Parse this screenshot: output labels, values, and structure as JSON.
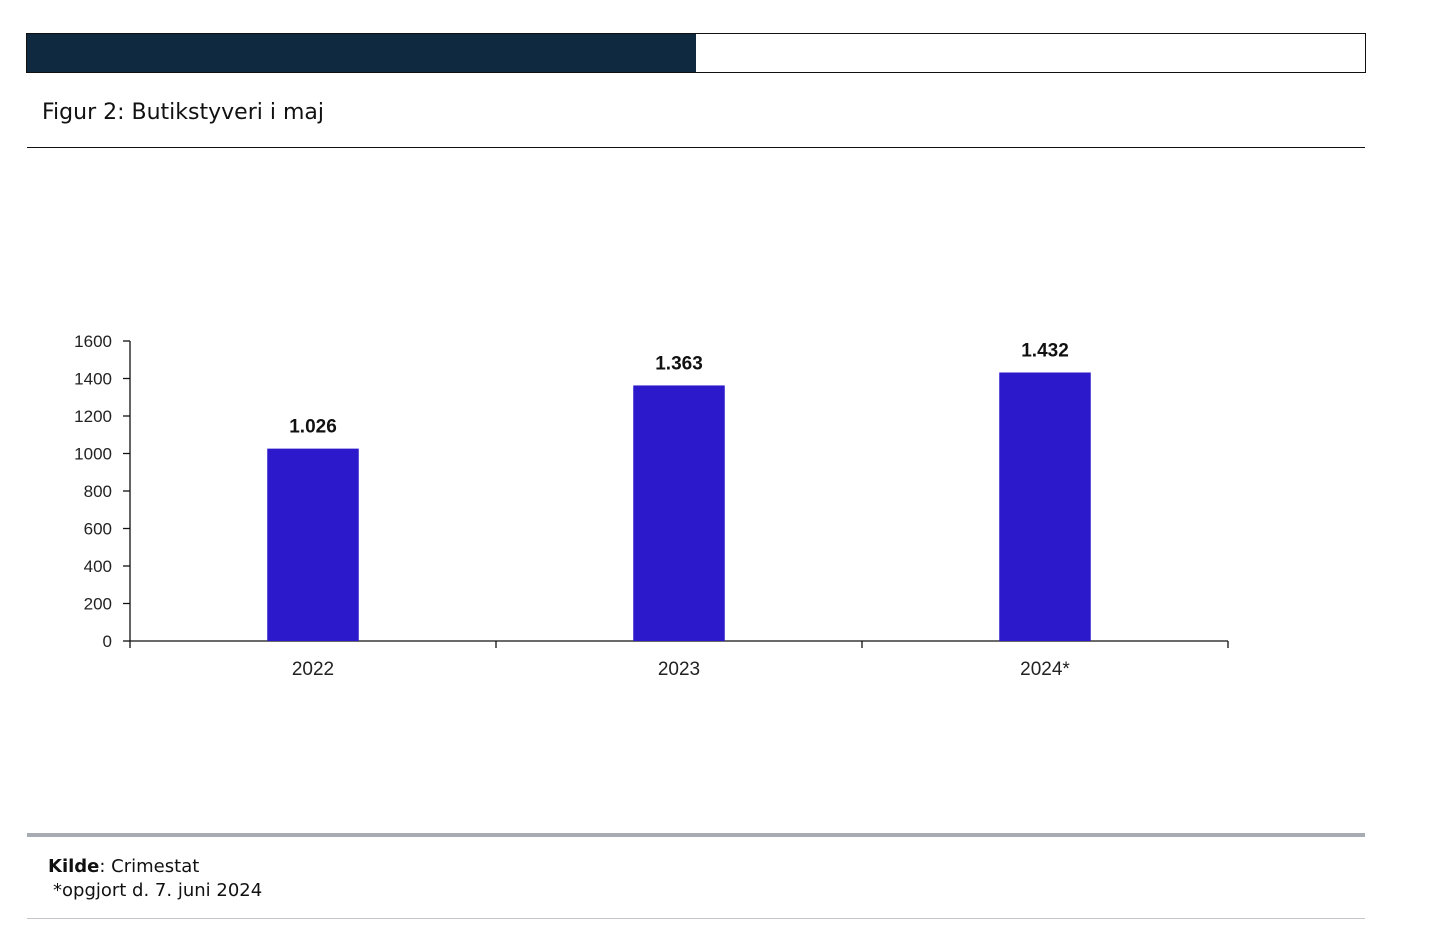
{
  "header": {
    "title": "Figur 2: Butikstyveri i maj",
    "bar_fill_fraction": 0.5,
    "bar_color": "#0f2940"
  },
  "chart_data": {
    "type": "bar",
    "categories": [
      "2022",
      "2023",
      "2024*"
    ],
    "values": [
      1026,
      1363,
      1432
    ],
    "data_labels": [
      "1.026",
      "1.363",
      "1.432"
    ],
    "ylim": [
      0,
      1600
    ],
    "yticks": [
      0,
      200,
      400,
      600,
      800,
      1000,
      1200,
      1400,
      1600
    ],
    "xlabel": "",
    "ylabel": "",
    "grid": false,
    "bar_color": "#2c19cc"
  },
  "footer": {
    "source_label": "Kilde",
    "source_value": ": Crimestat",
    "note": "*opgjort d. 7. juni 2024"
  }
}
